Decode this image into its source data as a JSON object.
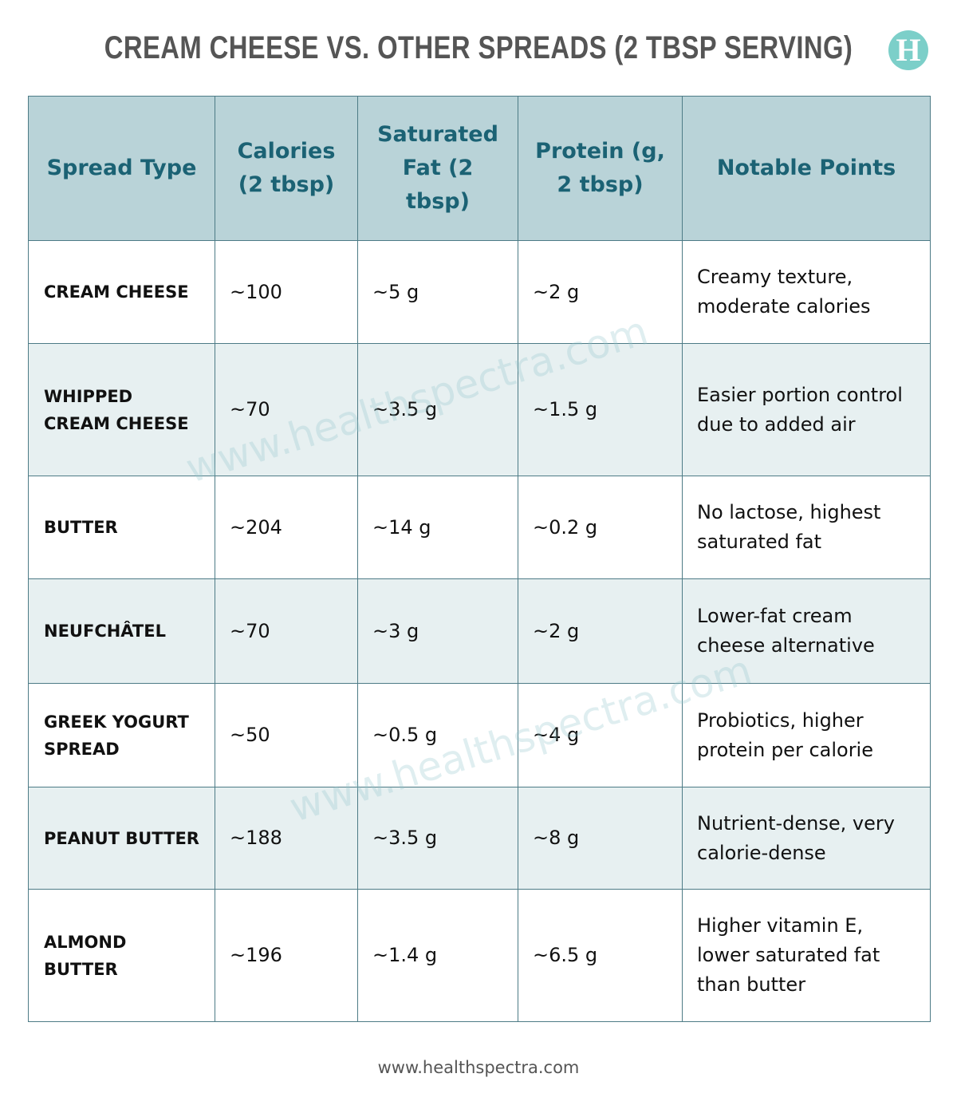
{
  "header": {
    "title": "CREAM CHEESE VS. OTHER SPREADS (2 TBSP SERVING)",
    "logo": "H"
  },
  "table": {
    "columns": [
      "Spread Type",
      "Calories (2 tbsp)",
      "Saturated Fat (2 tbsp)",
      "Protein (g, 2 tbsp)",
      "Notable Points"
    ],
    "rows": [
      [
        "CREAM CHEESE",
        "~100",
        "~5 g",
        "~2 g",
        "Creamy texture, moderate calories"
      ],
      [
        "WHIPPED CREAM CHEESE",
        "~70",
        "~3.5 g",
        "~1.5 g",
        "Easier portion control due to added air"
      ],
      [
        "BUTTER",
        "~204",
        "~14 g",
        "~0.2 g",
        "No lactose, highest saturated fat"
      ],
      [
        "NEUFCHÂTEL",
        "~70",
        "~3 g",
        "~2 g",
        "Lower-fat cream cheese alternative"
      ],
      [
        "GREEK YOGURT SPREAD",
        "~50",
        "~0.5 g",
        "~4 g",
        "Probiotics, higher protein per calorie"
      ],
      [
        "PEANUT BUTTER",
        "~188",
        "~3.5 g",
        "~8 g",
        "Nutrient-dense, very calorie-dense"
      ],
      [
        "ALMOND BUTTER",
        "~196",
        "~1.4 g",
        "~6.5 g",
        "Higher vitamin E, lower saturated fat than butter"
      ]
    ]
  },
  "watermarks": [
    "www.healthspectra.com",
    "www.healthspectra.com"
  ],
  "footer": "www.healthspectra.com"
}
